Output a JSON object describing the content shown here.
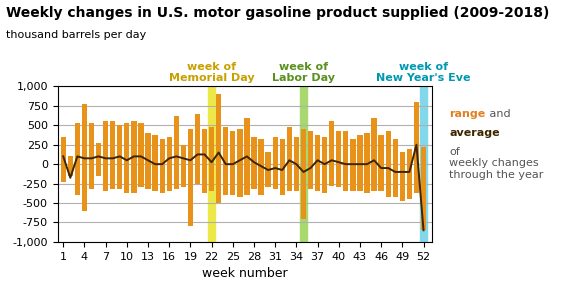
{
  "chart_data": {
    "type": "bar",
    "title": "Weekly changes in U.S. motor gasoline product supplied (2009-2018)",
    "subtitle": "thousand barrels per day",
    "x_label": "week number",
    "x": [
      1,
      2,
      3,
      4,
      5,
      6,
      7,
      8,
      9,
      10,
      11,
      12,
      13,
      14,
      15,
      16,
      17,
      18,
      19,
      20,
      21,
      22,
      23,
      24,
      25,
      26,
      27,
      28,
      29,
      30,
      31,
      32,
      33,
      34,
      35,
      36,
      37,
      38,
      39,
      40,
      41,
      42,
      43,
      44,
      45,
      46,
      47,
      48,
      49,
      50,
      51,
      52
    ],
    "series": [
      {
        "type": "bar",
        "color": "#E8921A",
        "values": [
          350,
          100,
          525,
          775,
          525,
          275,
          550,
          550,
          500,
          525,
          550,
          525,
          400,
          375,
          325,
          350,
          625,
          250,
          450,
          650,
          450,
          475,
          900,
          475,
          425,
          450,
          600,
          350,
          325,
          150,
          350,
          325,
          475,
          350,
          450,
          425,
          375,
          350,
          550,
          425,
          425,
          325,
          375,
          400,
          600,
          375,
          425,
          325,
          150,
          200,
          800,
          225
        ]
      },
      {
        "type": "bar",
        "color": "#E8921A",
        "values": [
          -225,
          -150,
          -400,
          -600,
          -325,
          -150,
          -350,
          -325,
          -325,
          -375,
          -375,
          -300,
          -325,
          -350,
          -375,
          -350,
          -325,
          -300,
          -800,
          -250,
          -375,
          -350,
          -500,
          -400,
          -400,
          -425,
          -400,
          -325,
          -400,
          -300,
          -325,
          -400,
          -350,
          -350,
          -700,
          -325,
          -350,
          -375,
          -275,
          -300,
          -350,
          -350,
          -350,
          -375,
          -350,
          -350,
          -425,
          -425,
          -475,
          -450,
          -375,
          -850
        ]
      },
      {
        "type": "line",
        "color": "#3D2500",
        "values": [
          100,
          -175,
          100,
          75,
          75,
          100,
          75,
          75,
          100,
          50,
          100,
          100,
          50,
          0,
          0,
          75,
          100,
          75,
          50,
          125,
          125,
          25,
          150,
          0,
          0,
          50,
          100,
          25,
          -25,
          -75,
          -50,
          -75,
          50,
          0,
          -100,
          -50,
          50,
          0,
          50,
          25,
          0,
          0,
          0,
          0,
          50,
          -50,
          -50,
          -100,
          -100,
          -100,
          250,
          -850
        ]
      }
    ],
    "xlim": [
      0.2,
      53.2
    ],
    "xticks": [
      1,
      4,
      7,
      10,
      13,
      16,
      19,
      22,
      25,
      28,
      31,
      34,
      37,
      40,
      43,
      46,
      49,
      52
    ],
    "ylim": [
      -1000,
      1000
    ],
    "yticks": [
      {
        "value": -1000,
        "label": "-1,000"
      },
      -750,
      -500,
      -250,
      0,
      250,
      500,
      750,
      {
        "value": 1000,
        "label": "1,000"
      }
    ],
    "grid": "y",
    "annotations": [
      {
        "x": 22,
        "text": "week of\nMemorial Day",
        "color": "#EDE84A",
        "label_color": "#C8A000"
      },
      {
        "x": 35,
        "text": "week of\nLabor Day",
        "color": "#A8D86E",
        "label_color": "#5A9020"
      },
      {
        "x": 52,
        "text": "week of\nNew Year's Eve",
        "color": "#82D8EA",
        "label_color": "#0098B0"
      }
    ],
    "note": [
      [
        {
          "text": "range",
          "color": "#E08020"
        },
        {
          "text": " and",
          "color": "#555555"
        }
      ],
      [
        {
          "text": "average",
          "color": "#3D2500"
        }
      ],
      [
        {
          "text": "of\nweekly changes\nthrough the year",
          "color": "#555555"
        }
      ]
    ]
  }
}
